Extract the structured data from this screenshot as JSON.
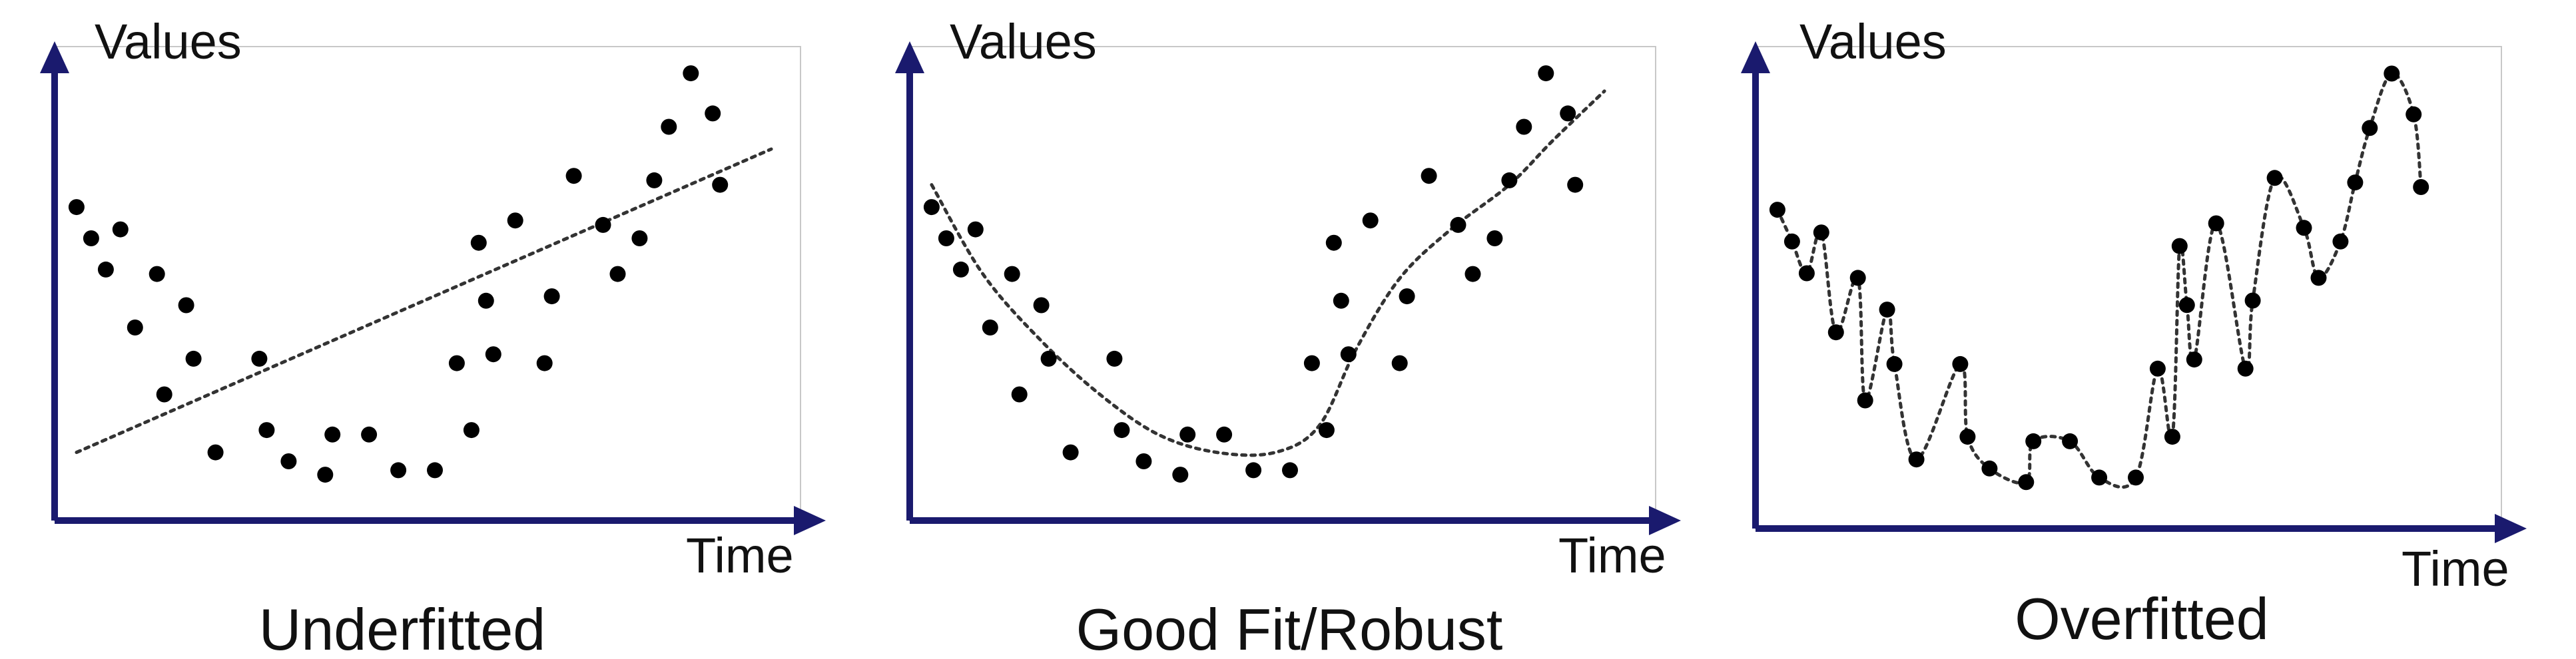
{
  "colors": {
    "axis": "#1a1a6e",
    "points": "#000000",
    "fit_line": "#333333",
    "frame": "#c8c8c8"
  },
  "chart_data": [
    {
      "type": "scatter",
      "title": "Underfitted",
      "xlabel": "Time",
      "ylabel": "Values",
      "xlim": [
        0,
        100
      ],
      "ylim": [
        0,
        100
      ],
      "grid": false,
      "fit": "linear",
      "points": [
        {
          "x": 3,
          "y": 67
        },
        {
          "x": 5,
          "y": 60
        },
        {
          "x": 7,
          "y": 53
        },
        {
          "x": 9,
          "y": 62
        },
        {
          "x": 11,
          "y": 40
        },
        {
          "x": 14,
          "y": 52
        },
        {
          "x": 15,
          "y": 25
        },
        {
          "x": 18,
          "y": 45
        },
        {
          "x": 19,
          "y": 33
        },
        {
          "x": 22,
          "y": 12
        },
        {
          "x": 28,
          "y": 33
        },
        {
          "x": 29,
          "y": 17
        },
        {
          "x": 32,
          "y": 10
        },
        {
          "x": 37,
          "y": 7
        },
        {
          "x": 38,
          "y": 16
        },
        {
          "x": 43,
          "y": 16
        },
        {
          "x": 47,
          "y": 8
        },
        {
          "x": 52,
          "y": 8
        },
        {
          "x": 55,
          "y": 32
        },
        {
          "x": 57,
          "y": 17
        },
        {
          "x": 58,
          "y": 59
        },
        {
          "x": 59,
          "y": 46
        },
        {
          "x": 60,
          "y": 34
        },
        {
          "x": 63,
          "y": 64
        },
        {
          "x": 67,
          "y": 32
        },
        {
          "x": 68,
          "y": 47
        },
        {
          "x": 71,
          "y": 74
        },
        {
          "x": 75,
          "y": 63
        },
        {
          "x": 77,
          "y": 52
        },
        {
          "x": 80,
          "y": 60
        },
        {
          "x": 82,
          "y": 73
        },
        {
          "x": 84,
          "y": 85
        },
        {
          "x": 87,
          "y": 97
        },
        {
          "x": 90,
          "y": 88
        },
        {
          "x": 91,
          "y": 72
        }
      ],
      "fit_line": [
        {
          "x": 3,
          "y": 12
        },
        {
          "x": 98,
          "y": 80
        }
      ]
    },
    {
      "type": "scatter",
      "title": "Good Fit/Robust",
      "xlabel": "Time",
      "ylabel": "Values",
      "xlim": [
        0,
        100
      ],
      "ylim": [
        0,
        100
      ],
      "grid": false,
      "fit": "smooth",
      "points": [
        {
          "x": 3,
          "y": 67
        },
        {
          "x": 5,
          "y": 60
        },
        {
          "x": 7,
          "y": 53
        },
        {
          "x": 9,
          "y": 62
        },
        {
          "x": 11,
          "y": 40
        },
        {
          "x": 14,
          "y": 52
        },
        {
          "x": 15,
          "y": 25
        },
        {
          "x": 18,
          "y": 45
        },
        {
          "x": 19,
          "y": 33
        },
        {
          "x": 22,
          "y": 12
        },
        {
          "x": 28,
          "y": 33
        },
        {
          "x": 29,
          "y": 17
        },
        {
          "x": 32,
          "y": 10
        },
        {
          "x": 37,
          "y": 7
        },
        {
          "x": 38,
          "y": 16
        },
        {
          "x": 43,
          "y": 16
        },
        {
          "x": 47,
          "y": 8
        },
        {
          "x": 52,
          "y": 8
        },
        {
          "x": 55,
          "y": 32
        },
        {
          "x": 57,
          "y": 17
        },
        {
          "x": 58,
          "y": 59
        },
        {
          "x": 59,
          "y": 46
        },
        {
          "x": 60,
          "y": 34
        },
        {
          "x": 63,
          "y": 64
        },
        {
          "x": 67,
          "y": 32
        },
        {
          "x": 68,
          "y": 47
        },
        {
          "x": 71,
          "y": 74
        },
        {
          "x": 75,
          "y": 63
        },
        {
          "x": 77,
          "y": 52
        },
        {
          "x": 80,
          "y": 60
        },
        {
          "x": 82,
          "y": 73
        },
        {
          "x": 84,
          "y": 85
        },
        {
          "x": 87,
          "y": 97
        },
        {
          "x": 90,
          "y": 88
        },
        {
          "x": 91,
          "y": 72
        }
      ],
      "fit_curve": [
        {
          "x": 3,
          "y": 72
        },
        {
          "x": 10,
          "y": 52
        },
        {
          "x": 18,
          "y": 37
        },
        {
          "x": 26,
          "y": 25
        },
        {
          "x": 34,
          "y": 16
        },
        {
          "x": 42,
          "y": 12
        },
        {
          "x": 50,
          "y": 12
        },
        {
          "x": 56,
          "y": 18
        },
        {
          "x": 61,
          "y": 35
        },
        {
          "x": 67,
          "y": 51
        },
        {
          "x": 74,
          "y": 62
        },
        {
          "x": 82,
          "y": 72
        },
        {
          "x": 88,
          "y": 82
        },
        {
          "x": 95,
          "y": 93
        }
      ]
    },
    {
      "type": "scatter",
      "title": "Overfitted",
      "xlabel": "Time",
      "ylabel": "Values",
      "xlim": [
        0,
        100
      ],
      "ylim": [
        0,
        100
      ],
      "grid": false,
      "fit": "interpolating",
      "points": [
        {
          "x": 3,
          "y": 67
        },
        {
          "x": 5,
          "y": 60
        },
        {
          "x": 7,
          "y": 53
        },
        {
          "x": 9,
          "y": 62
        },
        {
          "x": 11,
          "y": 40
        },
        {
          "x": 14,
          "y": 52
        },
        {
          "x": 15,
          "y": 25
        },
        {
          "x": 18,
          "y": 45
        },
        {
          "x": 19,
          "y": 33
        },
        {
          "x": 22,
          "y": 12
        },
        {
          "x": 28,
          "y": 33
        },
        {
          "x": 29,
          "y": 17
        },
        {
          "x": 32,
          "y": 10
        },
        {
          "x": 37,
          "y": 7
        },
        {
          "x": 38,
          "y": 16
        },
        {
          "x": 43,
          "y": 16
        },
        {
          "x": 47,
          "y": 8
        },
        {
          "x": 52,
          "y": 8
        },
        {
          "x": 55,
          "y": 32
        },
        {
          "x": 57,
          "y": 17
        },
        {
          "x": 58,
          "y": 59
        },
        {
          "x": 59,
          "y": 46
        },
        {
          "x": 60,
          "y": 34
        },
        {
          "x": 63,
          "y": 64
        },
        {
          "x": 67,
          "y": 32
        },
        {
          "x": 68,
          "y": 47
        },
        {
          "x": 71,
          "y": 74
        },
        {
          "x": 75,
          "y": 63
        },
        {
          "x": 77,
          "y": 52
        },
        {
          "x": 80,
          "y": 60
        },
        {
          "x": 82,
          "y": 73
        },
        {
          "x": 84,
          "y": 85
        },
        {
          "x": 87,
          "y": 97
        },
        {
          "x": 90,
          "y": 88
        },
        {
          "x": 91,
          "y": 72
        }
      ]
    }
  ]
}
